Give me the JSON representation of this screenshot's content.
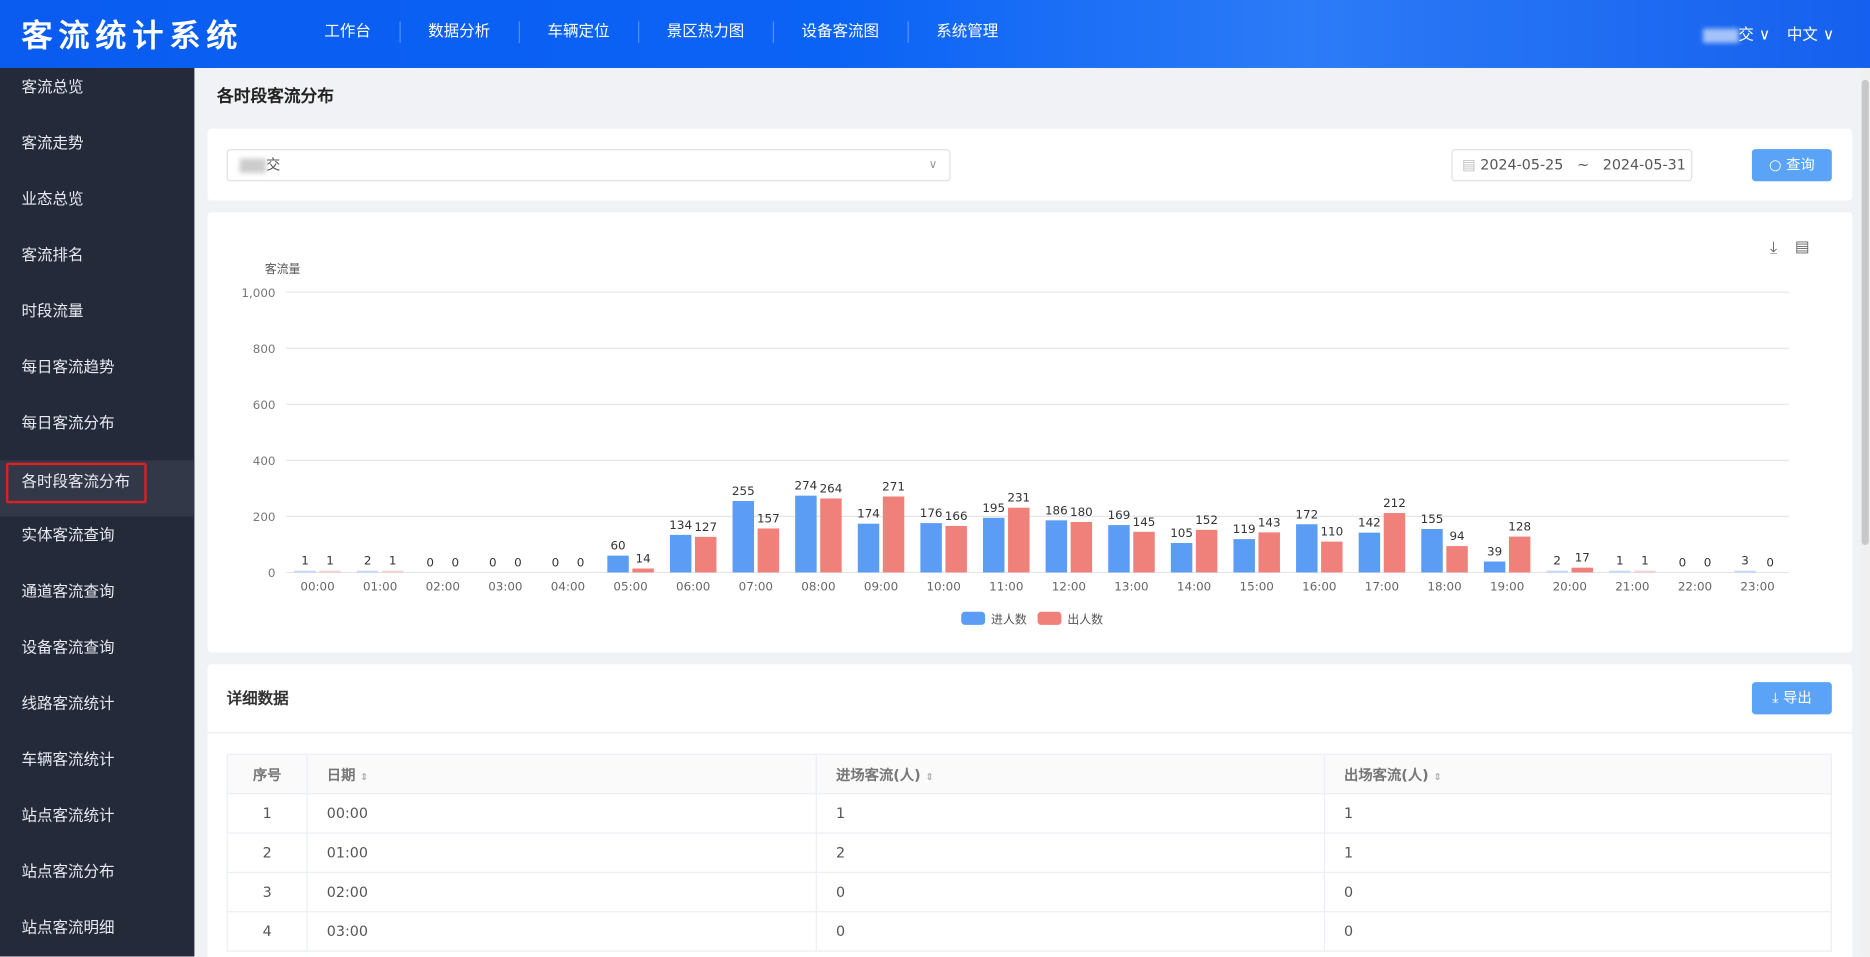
{
  "header": {
    "logo": "客流统计系统",
    "nav": [
      "工作台",
      "数据分析",
      "车辆定位",
      "景区热力图",
      "设备客流图",
      "系统管理"
    ],
    "active_nav": "数据分析",
    "user": "交",
    "language": "中文"
  },
  "sidebar": {
    "items": [
      "客流总览",
      "客流走势",
      "业态总览",
      "客流排名",
      "时段流量",
      "每日客流趋势",
      "每日客流分布",
      "各时段客流分布",
      "实体客流查询",
      "通道客流查询",
      "设备客流查询",
      "线路客流统计",
      "车辆客流统计",
      "站点客流统计",
      "站点客流分布",
      "站点客流明细"
    ],
    "active": "各时段客流分布"
  },
  "page": {
    "title": "各时段客流分布"
  },
  "filters": {
    "select_value": "交",
    "date_start": "2024-05-25",
    "date_sep": "~",
    "date_end": "2024-05-31",
    "query_label": "查询"
  },
  "chart_data": {
    "type": "bar",
    "ylabel": "客流量",
    "ylim": [
      0,
      1000
    ],
    "yticks": [
      "0",
      "200",
      "400",
      "600",
      "800",
      "1,000"
    ],
    "grid": true,
    "legend": "bottom",
    "categories": [
      "00:00",
      "01:00",
      "02:00",
      "03:00",
      "04:00",
      "05:00",
      "06:00",
      "07:00",
      "08:00",
      "09:00",
      "10:00",
      "11:00",
      "12:00",
      "13:00",
      "14:00",
      "15:00",
      "16:00",
      "17:00",
      "18:00",
      "19:00",
      "20:00",
      "21:00",
      "22:00",
      "23:00"
    ],
    "series": [
      {
        "name": "进人数",
        "color": "#5b9cf5",
        "values": [
          1,
          2,
          0,
          0,
          0,
          60,
          134,
          255,
          274,
          174,
          176,
          195,
          186,
          169,
          105,
          119,
          172,
          142,
          155,
          39,
          2,
          1,
          0,
          3
        ]
      },
      {
        "name": "出人数",
        "color": "#f0807a",
        "values": [
          1,
          1,
          0,
          0,
          0,
          14,
          127,
          157,
          264,
          271,
          166,
          231,
          180,
          145,
          152,
          143,
          110,
          212,
          94,
          128,
          17,
          1,
          0,
          0
        ]
      }
    ]
  },
  "details": {
    "title": "详细数据",
    "export_label": "导出",
    "columns": [
      "序号",
      "日期",
      "进场客流(人)",
      "出场客流(人)"
    ],
    "rows": [
      [
        "1",
        "00:00",
        "1",
        "1"
      ],
      [
        "2",
        "01:00",
        "2",
        "1"
      ],
      [
        "3",
        "02:00",
        "0",
        "0"
      ],
      [
        "4",
        "03:00",
        "0",
        "0"
      ]
    ]
  }
}
